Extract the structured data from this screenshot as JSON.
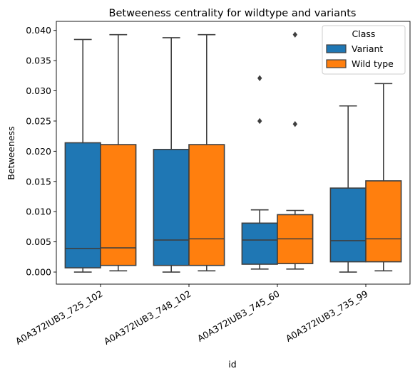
{
  "chart_data": {
    "type": "boxplot",
    "title": "Betweeness centrality for wildtype and variants",
    "xlabel": "id",
    "ylabel": "Betweeness",
    "ylim": [
      -0.002,
      0.0415
    ],
    "yticks": [
      "0.000",
      "0.005",
      "0.010",
      "0.015",
      "0.020",
      "0.025",
      "0.030",
      "0.035",
      "0.040"
    ],
    "ytick_values": [
      0,
      0.005,
      0.01,
      0.015,
      0.02,
      0.025,
      0.03,
      0.035,
      0.04
    ],
    "categories": [
      "A0A372IUB3_725_102",
      "A0A372IUB3_748_102",
      "A0A372IUB3_745_60",
      "A0A372IUB3_735_99"
    ],
    "legend": {
      "title": "Class",
      "placement": "top-right",
      "entries": [
        "Variant",
        "Wild type"
      ]
    },
    "series": [
      {
        "name": "Variant",
        "color": "#1f77b4",
        "boxes": [
          {
            "min": 0.0,
            "q1": 0.0007,
            "median": 0.0039,
            "q3": 0.0214,
            "max": 0.0385,
            "outliers": []
          },
          {
            "min": 0.0,
            "q1": 0.0011,
            "median": 0.0053,
            "q3": 0.0203,
            "max": 0.0388,
            "outliers": []
          },
          {
            "min": 0.0005,
            "q1": 0.0013,
            "median": 0.0053,
            "q3": 0.0081,
            "max": 0.0103,
            "outliers": [
              0.025,
              0.0321
            ]
          },
          {
            "min": 0.0,
            "q1": 0.0017,
            "median": 0.0052,
            "q3": 0.0139,
            "max": 0.0275,
            "outliers": []
          }
        ]
      },
      {
        "name": "Wild type",
        "color": "#ff7f0e",
        "boxes": [
          {
            "min": 0.0002,
            "q1": 0.0011,
            "median": 0.004,
            "q3": 0.0211,
            "max": 0.0393,
            "outliers": []
          },
          {
            "min": 0.0002,
            "q1": 0.0011,
            "median": 0.0055,
            "q3": 0.0211,
            "max": 0.0393,
            "outliers": []
          },
          {
            "min": 0.0005,
            "q1": 0.0014,
            "median": 0.0055,
            "q3": 0.0095,
            "max": 0.0102,
            "outliers": [
              0.0245,
              0.0393
            ]
          },
          {
            "min": 0.0002,
            "q1": 0.0017,
            "median": 0.0055,
            "q3": 0.0151,
            "max": 0.0312,
            "outliers": []
          }
        ]
      }
    ]
  }
}
